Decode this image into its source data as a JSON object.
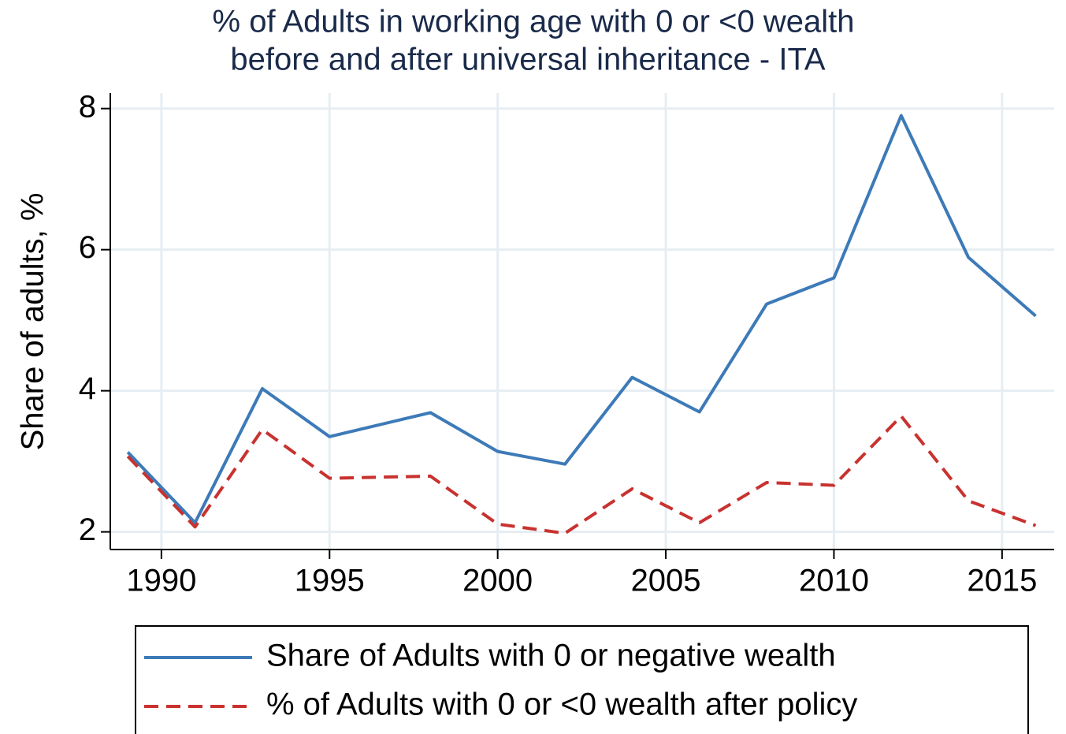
{
  "chart_data": {
    "type": "line",
    "title": [
      "% of Adults in working age with 0 or <0 wealth",
      "before and after universal inheritance - ITA"
    ],
    "y_label": "Share of adults, %",
    "x": [
      1989,
      1991,
      1993,
      1995,
      1998,
      2000,
      2002,
      2004,
      2006,
      2008,
      2010,
      2012,
      2014,
      2016
    ],
    "series": [
      {
        "name": "Share of Adults with 0 or negative wealth",
        "color": "#3d7ab8",
        "dash": false,
        "values": [
          3.13,
          2.13,
          4.03,
          3.35,
          3.69,
          3.14,
          2.96,
          4.19,
          3.7,
          5.23,
          5.6,
          7.9,
          5.89,
          5.06
        ]
      },
      {
        "name": "% of Adults with 0 or <0 wealth after policy",
        "color": "#c8322f",
        "dash": true,
        "values": [
          3.07,
          2.07,
          3.45,
          2.76,
          2.79,
          2.11,
          1.98,
          2.61,
          2.13,
          2.7,
          2.66,
          3.64,
          2.44,
          2.09
        ]
      }
    ],
    "xlim": [
      1988.48,
      2016.55
    ],
    "xticks": [
      1990,
      1995,
      2000,
      2005,
      2010,
      2015
    ],
    "ylim": [
      1.75,
      8.22
    ],
    "yticks": [
      2,
      4,
      6,
      8
    ],
    "grid": true,
    "legend": "bottom"
  }
}
